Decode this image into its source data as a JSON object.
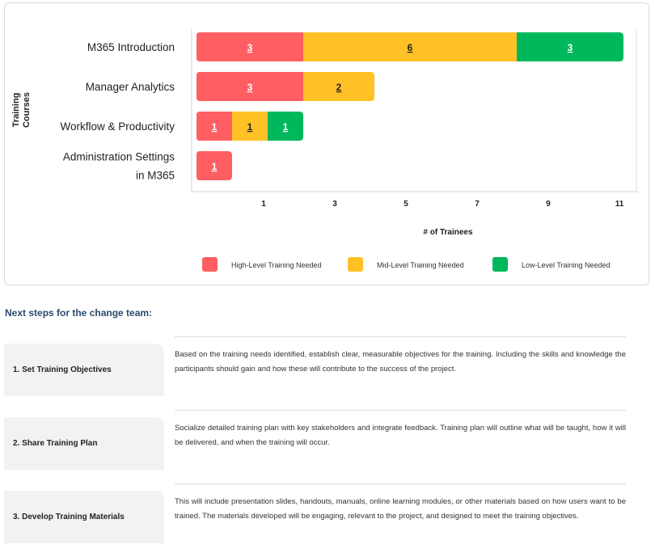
{
  "chart_data": {
    "type": "bar",
    "orientation": "horizontal",
    "stacked": true,
    "categories": [
      "M365 Introduction",
      "Manager Analytics",
      "Workflow & Productivity",
      "Administration Settings in M365"
    ],
    "category_lines": [
      [
        "M365 Introduction"
      ],
      [
        "Manager Analytics"
      ],
      [
        "Workflow & Productivity"
      ],
      [
        "Administration Settings",
        "in M365"
      ]
    ],
    "series": [
      {
        "name": "High-Level Training Needed",
        "color": "#ff5f63",
        "label_color": "#ffffff",
        "values": [
          3,
          3,
          1,
          1
        ]
      },
      {
        "name": "Mid-Level Training Needed",
        "color": "#ffc125",
        "label_color": "#222222",
        "values": [
          6,
          2,
          1,
          0
        ]
      },
      {
        "name": "Low-Level Training Needed",
        "color": "#00b85c",
        "label_color": "#ffffff",
        "values": [
          3,
          0,
          1,
          0
        ]
      }
    ],
    "xticks": [
      1,
      3,
      5,
      7,
      9,
      11
    ],
    "xlabel": "# of Trainees",
    "ylabel": "Training Courses",
    "ylabel_lines": [
      "Training",
      "Courses"
    ],
    "legend_position": "bottom",
    "grid": false
  },
  "next_steps": {
    "heading": "Next steps for the change team:",
    "steps": [
      {
        "title": "1. Set Training Objectives",
        "text": "Based on the training needs identified, establish clear, measurable objectives for the training. Including the skills and knowledge the participants should gain and how these will contribute to the success of the project."
      },
      {
        "title": "2. Share Training Plan",
        "text": "Socialize detailed training plan with key stakeholders and integrate feedback. Training plan will outline what will be taught, how it will be delivered, and when the training will occur."
      },
      {
        "title": "3. Develop Training Materials",
        "text": "This will include presentation slides, handouts, manuals, online learning modules, or other materials based on how users want to be trained. The materials developed will be engaging, relevant to the project, and designed to meet the training objectives."
      }
    ]
  }
}
